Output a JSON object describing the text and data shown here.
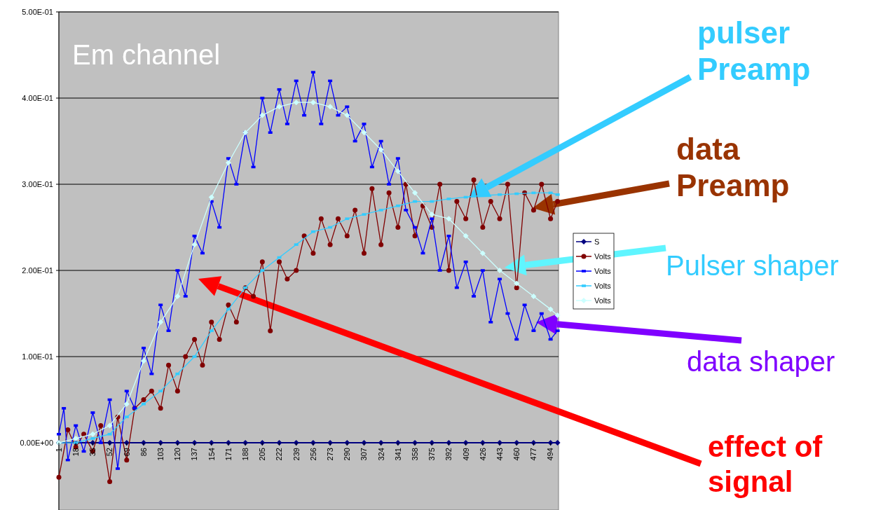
{
  "chart_data": {
    "type": "line",
    "xlim": [
      1,
      502
    ],
    "xticks": [
      1,
      18,
      35,
      52,
      69,
      86,
      103,
      120,
      137,
      154,
      171,
      188,
      205,
      222,
      239,
      256,
      273,
      290,
      307,
      324,
      341,
      358,
      375,
      392,
      409,
      426,
      443,
      460,
      477,
      494
    ],
    "ylim": [
      -0.078,
      0.5
    ],
    "yticks": [
      {
        "value": 0,
        "label": "0.00E+00"
      },
      {
        "value": 0.1,
        "label": "1.00E-01"
      },
      {
        "value": 0.2,
        "label": "2.00E-01"
      },
      {
        "value": 0.3,
        "label": "3.00E-01"
      },
      {
        "value": 0.4,
        "label": "4.00E-01"
      },
      {
        "value": 0.5,
        "label": "5.00E-01"
      }
    ],
    "grid": "y",
    "legend": "right",
    "series": [
      {
        "name": "S",
        "color": "#000080",
        "marker": "diamond",
        "x": [
          1,
          18,
          35,
          52,
          69,
          86,
          103,
          120,
          137,
          154,
          171,
          188,
          205,
          222,
          239,
          256,
          273,
          290,
          307,
          324,
          341,
          358,
          375,
          392,
          409,
          426,
          443,
          460,
          477,
          494,
          501
        ],
        "values": [
          0,
          0,
          0,
          0,
          0,
          0,
          0,
          0,
          0,
          0,
          0,
          0,
          0,
          0,
          0,
          0,
          0,
          0,
          0,
          0,
          0,
          0,
          0,
          0,
          0,
          0,
          0,
          0,
          0,
          0,
          0
        ]
      },
      {
        "name": "Volts",
        "color": "#800000",
        "marker": "circle",
        "x": [
          1,
          10,
          18,
          26,
          35,
          43,
          52,
          60,
          69,
          77,
          86,
          94,
          103,
          111,
          120,
          128,
          137,
          145,
          154,
          162,
          171,
          179,
          188,
          196,
          205,
          213,
          222,
          230,
          239,
          247,
          256,
          264,
          273,
          281,
          290,
          298,
          307,
          315,
          324,
          332,
          341,
          349,
          358,
          366,
          375,
          383,
          392,
          400,
          409,
          417,
          426,
          434,
          443,
          451,
          460,
          468,
          477,
          485,
          494,
          501
        ],
        "values": [
          -0.04,
          0.015,
          -0.005,
          0.01,
          -0.01,
          0.02,
          -0.045,
          0.03,
          -0.02,
          0.04,
          0.05,
          0.06,
          0.04,
          0.09,
          0.06,
          0.1,
          0.12,
          0.09,
          0.14,
          0.12,
          0.16,
          0.14,
          0.18,
          0.17,
          0.21,
          0.13,
          0.21,
          0.19,
          0.2,
          0.24,
          0.22,
          0.26,
          0.23,
          0.26,
          0.24,
          0.27,
          0.22,
          0.295,
          0.23,
          0.29,
          0.25,
          0.3,
          0.24,
          0.275,
          0.25,
          0.3,
          0.2,
          0.28,
          0.26,
          0.305,
          0.25,
          0.28,
          0.26,
          0.3,
          0.18,
          0.29,
          0.27,
          0.3,
          0.26,
          0.28
        ]
      },
      {
        "name": "Volts",
        "color": "#0000ff",
        "marker": "square",
        "x": [
          1,
          6,
          10,
          18,
          26,
          35,
          43,
          52,
          60,
          69,
          77,
          86,
          94,
          103,
          111,
          120,
          128,
          137,
          145,
          154,
          162,
          171,
          179,
          188,
          196,
          205,
          213,
          222,
          230,
          239,
          247,
          256,
          264,
          273,
          281,
          290,
          298,
          307,
          315,
          324,
          332,
          341,
          349,
          358,
          366,
          375,
          383,
          392,
          400,
          409,
          417,
          426,
          434,
          443,
          451,
          460,
          468,
          477,
          485,
          494,
          501
        ],
        "values": [
          0.01,
          0.04,
          -0.02,
          0.02,
          -0.01,
          0.035,
          0,
          0.05,
          -0.03,
          0.06,
          0.04,
          0.11,
          0.08,
          0.16,
          0.13,
          0.2,
          0.17,
          0.24,
          0.22,
          0.28,
          0.25,
          0.33,
          0.3,
          0.36,
          0.32,
          0.4,
          0.36,
          0.41,
          0.37,
          0.42,
          0.38,
          0.43,
          0.37,
          0.42,
          0.38,
          0.39,
          0.35,
          0.37,
          0.32,
          0.35,
          0.3,
          0.33,
          0.27,
          0.25,
          0.22,
          0.26,
          0.2,
          0.24,
          0.18,
          0.21,
          0.17,
          0.2,
          0.14,
          0.19,
          0.15,
          0.12,
          0.16,
          0.13,
          0.15,
          0.12,
          0.13
        ]
      },
      {
        "name": "Volts",
        "color": "#33ccff",
        "marker": "square",
        "x": [
          1,
          18,
          35,
          52,
          69,
          86,
          103,
          120,
          137,
          154,
          171,
          188,
          205,
          222,
          239,
          256,
          273,
          290,
          307,
          324,
          341,
          358,
          375,
          392,
          409,
          426,
          443,
          460,
          477,
          494,
          501
        ],
        "values": [
          0,
          0,
          0.005,
          0.01,
          0.03,
          0.045,
          0.06,
          0.08,
          0.1,
          0.13,
          0.155,
          0.18,
          0.2,
          0.215,
          0.23,
          0.245,
          0.25,
          0.26,
          0.265,
          0.27,
          0.275,
          0.28,
          0.28,
          0.283,
          0.285,
          0.287,
          0.288,
          0.289,
          0.29,
          0.29,
          0.288
        ]
      },
      {
        "name": "Volts",
        "color": "#ccffff",
        "marker": "diamond",
        "x": [
          1,
          18,
          35,
          52,
          69,
          86,
          103,
          120,
          137,
          154,
          171,
          188,
          205,
          222,
          239,
          256,
          273,
          290,
          307,
          324,
          341,
          358,
          375,
          392,
          409,
          426,
          443,
          460,
          477,
          494,
          501
        ],
        "values": [
          0,
          0.005,
          0.01,
          0.02,
          0.045,
          0.095,
          0.14,
          0.17,
          0.23,
          0.285,
          0.325,
          0.36,
          0.38,
          0.39,
          0.395,
          0.395,
          0.39,
          0.38,
          0.36,
          0.34,
          0.315,
          0.29,
          0.265,
          0.26,
          0.24,
          0.22,
          0.2,
          0.185,
          0.17,
          0.155,
          0.148
        ]
      }
    ],
    "annotations": [
      "Em channel",
      "pulser\nPreamp",
      "data\nPreamp",
      "Pulser shaper",
      "data shaper",
      "effect of\nsignal"
    ]
  }
}
